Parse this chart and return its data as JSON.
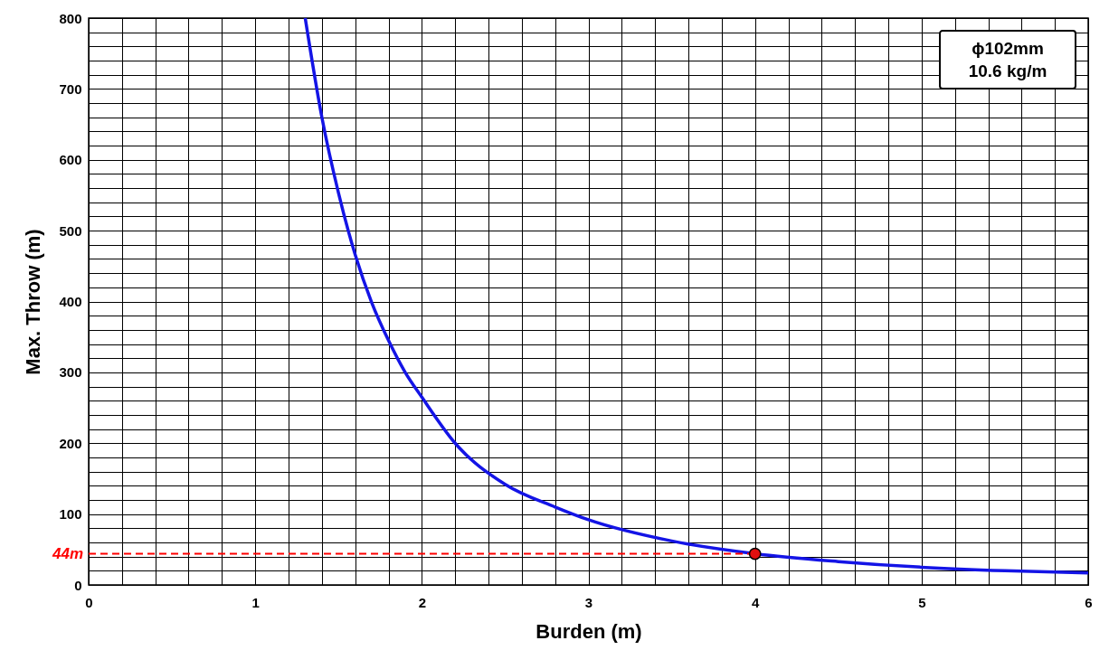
{
  "chart_data": {
    "type": "line",
    "xlabel": "Burden (m)",
    "ylabel": "Max. Throw (m)",
    "annotations": [
      "ϕ102mm",
      "10.6 kg/m"
    ],
    "series": [
      {
        "color": "#1414e6",
        "x": [
          1.3,
          1.4,
          1.5,
          1.6,
          1.7,
          1.8,
          1.9,
          2.0,
          2.2,
          2.5,
          2.8,
          3.0,
          3.5,
          4.0,
          4.5,
          5.0,
          5.5,
          6.0
        ],
        "values": [
          800,
          660,
          553,
          466,
          398,
          345,
          300,
          265,
          200,
          142,
          110,
          92,
          62,
          44,
          33,
          25,
          20,
          17
        ]
      },
      {
        "type": "scatter",
        "color": "#e01010",
        "marker": "circle",
        "x": [
          4
        ],
        "values": [
          44
        ]
      }
    ],
    "xlim": [
      0,
      6
    ],
    "ylim": [
      0,
      800
    ],
    "xticks": [
      0,
      {
        "value": 0.2,
        "label": null
      },
      {
        "value": 0.4,
        "label": null
      },
      {
        "value": 0.6,
        "label": null
      },
      {
        "value": 0.8,
        "label": null
      },
      1,
      {
        "value": 1.2,
        "label": null
      },
      {
        "value": 1.4,
        "label": null
      },
      {
        "value": 1.6,
        "label": null
      },
      {
        "value": 1.8,
        "label": null
      },
      2,
      {
        "value": 2.2,
        "label": null
      },
      {
        "value": 2.4,
        "label": null
      },
      {
        "value": 2.6,
        "label": null
      },
      {
        "value": 2.8,
        "label": null
      },
      3,
      {
        "value": 3.2,
        "label": null
      },
      {
        "value": 3.4,
        "label": null
      },
      {
        "value": 3.6,
        "label": null
      },
      {
        "value": 3.8,
        "label": null
      },
      4,
      {
        "value": 4.2,
        "label": null
      },
      {
        "value": 4.4,
        "label": null
      },
      {
        "value": 4.6,
        "label": null
      },
      {
        "value": 4.8,
        "label": null
      },
      5,
      {
        "value": 5.2,
        "label": null
      },
      {
        "value": 5.4,
        "label": null
      },
      {
        "value": 5.6,
        "label": null
      },
      {
        "value": 5.8,
        "label": null
      },
      6
    ],
    "yticks": [
      0,
      {
        "value": 20,
        "label": null
      },
      {
        "value": 40,
        "label": null
      },
      {
        "value": 60,
        "label": null
      },
      {
        "value": 80,
        "label": null
      },
      100,
      {
        "value": 120,
        "label": null
      },
      {
        "value": 140,
        "label": null
      },
      {
        "value": 160,
        "label": null
      },
      {
        "value": 180,
        "label": null
      },
      200,
      {
        "value": 220,
        "label": null
      },
      {
        "value": 240,
        "label": null
      },
      {
        "value": 260,
        "label": null
      },
      {
        "value": 280,
        "label": null
      },
      300,
      {
        "value": 320,
        "label": null
      },
      {
        "value": 340,
        "label": null
      },
      {
        "value": 360,
        "label": null
      },
      {
        "value": 380,
        "label": null
      },
      400,
      {
        "value": 420,
        "label": null
      },
      {
        "value": 440,
        "label": null
      },
      {
        "value": 460,
        "label": null
      },
      {
        "value": 480,
        "label": null
      },
      500,
      {
        "value": 520,
        "label": null
      },
      {
        "value": 540,
        "label": null
      },
      {
        "value": 560,
        "label": null
      },
      {
        "value": 580,
        "label": null
      },
      600,
      {
        "value": 620,
        "label": null
      },
      {
        "value": 640,
        "label": null
      },
      {
        "value": 660,
        "label": null
      },
      {
        "value": 680,
        "label": null
      },
      700,
      {
        "value": 720,
        "label": null
      },
      {
        "value": 740,
        "label": null
      },
      {
        "value": 760,
        "label": null
      },
      {
        "value": 780,
        "label": null
      },
      800
    ],
    "grid": true,
    "ref_lines": [
      {
        "axis": "y",
        "value": 44,
        "label": "44m",
        "color": "#ff0000",
        "line_style": "dashed"
      }
    ]
  }
}
